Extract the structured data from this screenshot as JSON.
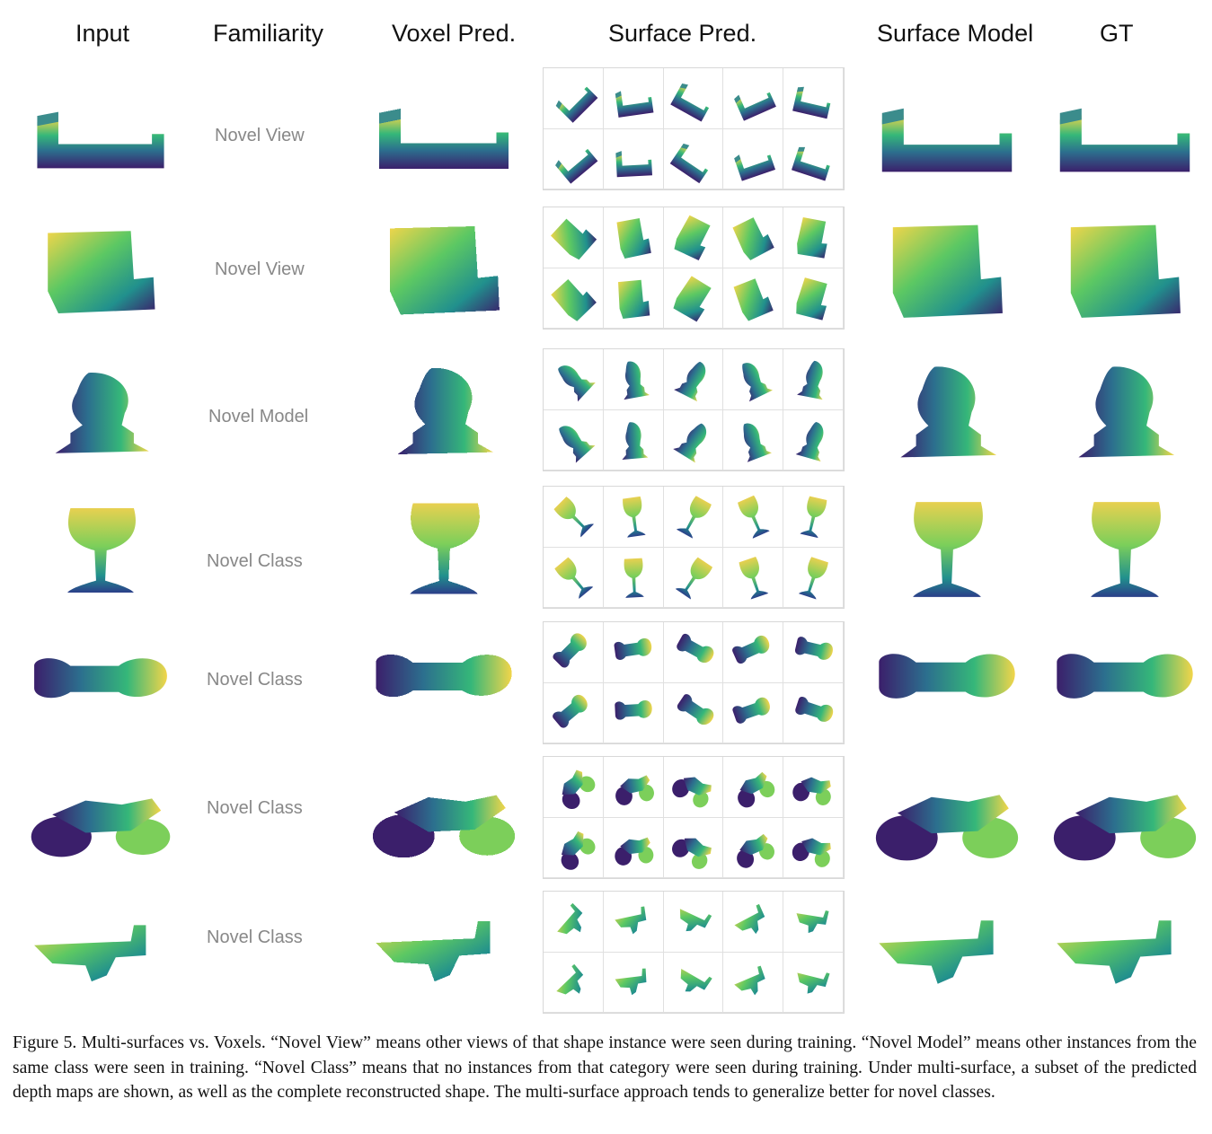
{
  "headers": {
    "input": "Input",
    "familiarity": "Familiarity",
    "voxel": "Voxel Pred.",
    "surface_pred": "Surface Pred.",
    "surface_model": "Surface Model",
    "gt": "GT"
  },
  "rows": [
    {
      "label": "Novel View",
      "object": "bed"
    },
    {
      "label": "Novel View",
      "object": "armchair"
    },
    {
      "label": "Novel Model",
      "object": "chess-knight"
    },
    {
      "label": "Novel Class",
      "object": "wine-glass"
    },
    {
      "label": "Novel Class",
      "object": "bone"
    },
    {
      "label": "Novel Class",
      "object": "motorcycle"
    },
    {
      "label": "Novel Class",
      "object": "rifle"
    }
  ],
  "caption": "Figure 5. Multi-surfaces vs. Voxels. “Novel View” means other views of that shape instance were seen during training. “Novel Model” means other instances from the same class were seen in training. “Novel Class” means that no instances from that category were seen during training. Under multi-surface, a subset of the predicted depth maps are shown, as well as the complete reconstructed shape. The multi-surface approach tends to generalize better for novel classes.",
  "colors": {
    "viridis_dark": "#3b1f6b",
    "viridis_blue": "#2c6f8e",
    "viridis_teal": "#21908d",
    "viridis_green": "#5cc863",
    "viridis_yellow": "#f2d54a",
    "familiarity_text": "#888888"
  }
}
